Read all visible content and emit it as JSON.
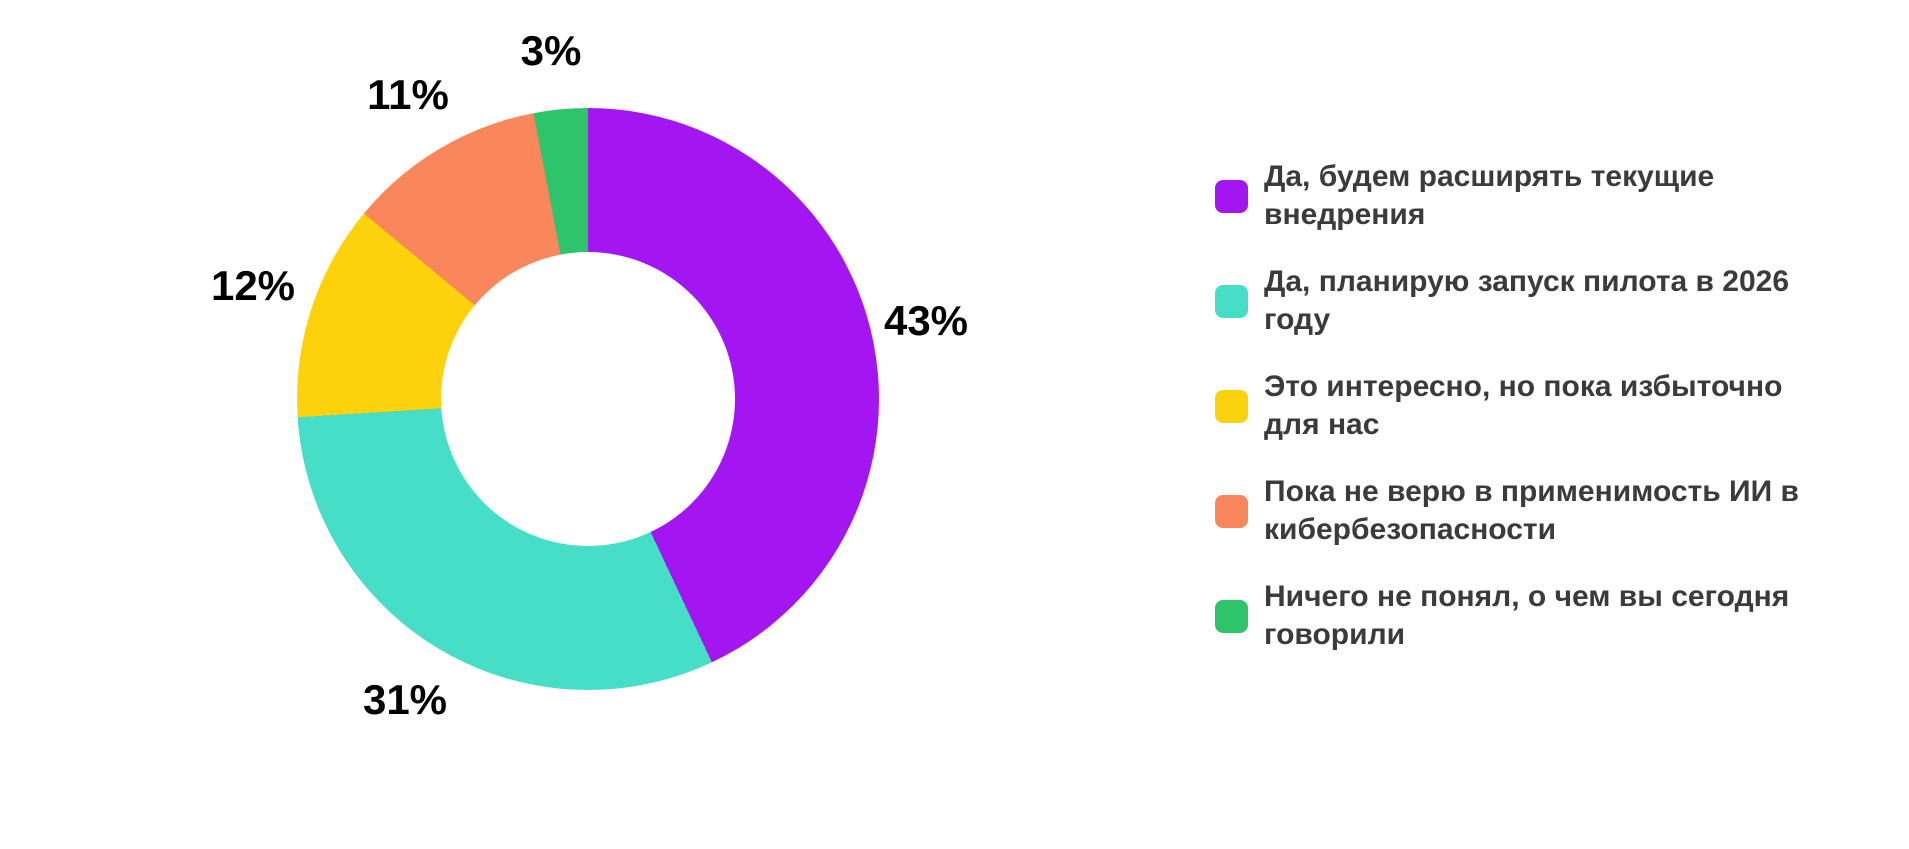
{
  "page": {
    "background": "#FFFFFF",
    "percent_label_color": "#000000",
    "legend_text_color": "#3B3B3B"
  },
  "chart_data": {
    "type": "pie",
    "subtype": "donut",
    "unit": "%",
    "direction": "clockwise",
    "start_angle_deg": 0,
    "inner_radius_ratio": 0.5,
    "grid": false,
    "legend_position": "right",
    "title": "",
    "slices": [
      {
        "label": "Да, будем расширять текущие внедрения",
        "value": 43,
        "display": "43%",
        "color": "#A316F2"
      },
      {
        "label": "Да, планирую запуск пилота в 2026 году",
        "value": 31,
        "display": "31%",
        "color": "#47DEC8"
      },
      {
        "label": "Это интересно, но пока избыточно для нас",
        "value": 12,
        "display": "12%",
        "color": "#FCD20D"
      },
      {
        "label": "Пока не верю в применимость ИИ в кибербезопасности",
        "value": 11,
        "display": "11%",
        "color": "#F9875B"
      },
      {
        "label": "Ничего не понял, о чем вы сегодня говорили",
        "value": 3,
        "display": "3%",
        "color": "#2EC46C"
      }
    ]
  },
  "legend": {
    "items": [
      {
        "text": "Да, будем расширять текущие\nвнедрения",
        "color": "#A316F2"
      },
      {
        "text": "Да, планирую запуск пилота в 2026\nгоду",
        "color": "#47DEC8"
      },
      {
        "text": "Это интересно, но пока избыточно\nдля нас",
        "color": "#FCD20D"
      },
      {
        "text": "Пока не верю в применимость ИИ в\nкибербезопасности",
        "color": "#F9875B"
      },
      {
        "text": "Ничего не понял, о чем вы сегодня\nговорили",
        "color": "#2EC46C"
      }
    ]
  }
}
